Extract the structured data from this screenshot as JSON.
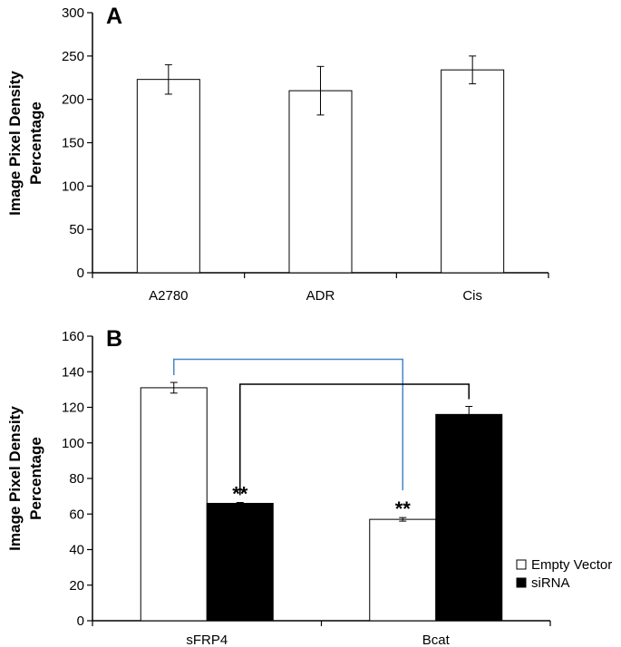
{
  "chart_data": [
    {
      "type": "bar",
      "panel": "A",
      "title": "",
      "xlabel": "",
      "ylabel": "Image Pixel Density Percentage",
      "ylabel_lines": [
        "Image Pixel Density",
        "Percentage"
      ],
      "ylim": [
        0,
        300
      ],
      "yticks": [
        0,
        50,
        100,
        150,
        200,
        250,
        300
      ],
      "categories": [
        "A2780",
        "ADR",
        "Cis"
      ],
      "series": [
        {
          "name": "",
          "fill": "#ffffff",
          "values": [
            223,
            210,
            234
          ],
          "errors": [
            17,
            28,
            16
          ]
        }
      ],
      "grid": false
    },
    {
      "type": "bar",
      "panel": "B",
      "title": "",
      "xlabel": "",
      "ylabel": "Image Pixel Density Percentage",
      "ylabel_lines": [
        "Image Pixel Density",
        "Percentage"
      ],
      "ylim": [
        0,
        160
      ],
      "yticks": [
        0,
        20,
        40,
        60,
        80,
        100,
        120,
        140,
        160
      ],
      "categories": [
        "sFRP4",
        "Bcat"
      ],
      "series": [
        {
          "name": "Empty Vector",
          "fill": "#ffffff",
          "values": [
            131,
            57
          ],
          "errors": [
            3,
            1
          ]
        },
        {
          "name": "siRNA",
          "fill": "#000000",
          "values": [
            66,
            116
          ],
          "errors": [
            0.5,
            4.5
          ]
        }
      ],
      "annotations": [
        {
          "text": "**",
          "category": 0,
          "series": 1
        },
        {
          "text": "**",
          "category": 1,
          "series": 0
        }
      ],
      "brackets": [
        {
          "from": [
            0,
            0
          ],
          "to": [
            1,
            0
          ],
          "level": 147,
          "color": "#4a86c8"
        },
        {
          "from": [
            0,
            1
          ],
          "to": [
            1,
            1
          ],
          "level": 133,
          "color": "#000000"
        }
      ],
      "legend": {
        "position": "bottom-right"
      },
      "grid": false
    }
  ],
  "colors": {
    "axis": "#000000",
    "bracket_blue": "#4a86c8"
  }
}
